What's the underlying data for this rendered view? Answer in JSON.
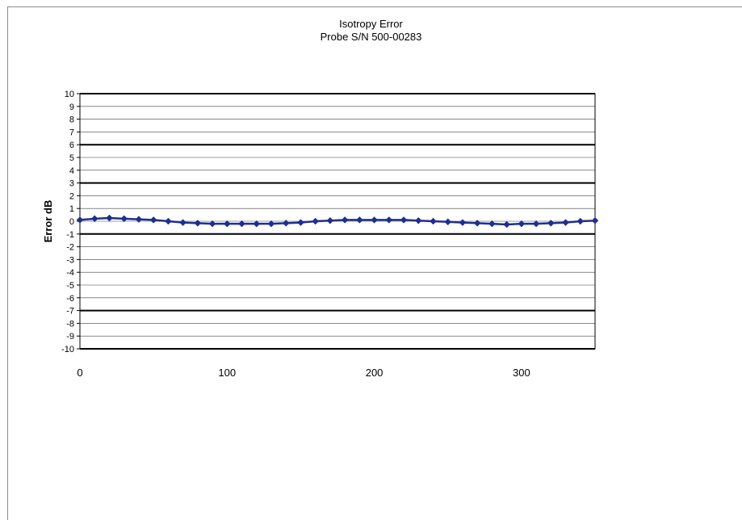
{
  "chart_data": {
    "type": "line",
    "title": "Isotropy Error",
    "subtitle": "Probe S/N 500-00283",
    "xlabel": "",
    "ylabel": "Error dB",
    "xlim": [
      0,
      350
    ],
    "ylim": [
      -10,
      10
    ],
    "x_ticks": [
      0,
      100,
      200,
      300
    ],
    "y_ticks": [
      10,
      9,
      8,
      7,
      6,
      5,
      4,
      3,
      2,
      1,
      0,
      -1,
      -2,
      -3,
      -4,
      -5,
      -6,
      -7,
      -8,
      -9,
      -10
    ],
    "emphasized_gridlines": [
      10,
      6,
      3,
      -1,
      -7,
      -10
    ],
    "grid": true,
    "legend": "none",
    "series": [
      {
        "color": "#1f2f8f",
        "marker": "diamond",
        "x": [
          0,
          10,
          20,
          30,
          40,
          50,
          60,
          70,
          80,
          90,
          100,
          110,
          120,
          130,
          140,
          150,
          160,
          170,
          180,
          190,
          200,
          210,
          220,
          230,
          240,
          250,
          260,
          270,
          280,
          290,
          300,
          310,
          320,
          330,
          340,
          350
        ],
        "y": [
          0.1,
          0.2,
          0.25,
          0.2,
          0.15,
          0.1,
          0.0,
          -0.1,
          -0.15,
          -0.2,
          -0.2,
          -0.2,
          -0.2,
          -0.2,
          -0.15,
          -0.1,
          0.0,
          0.05,
          0.1,
          0.1,
          0.1,
          0.1,
          0.1,
          0.05,
          0.0,
          -0.05,
          -0.1,
          -0.15,
          -0.2,
          -0.25,
          -0.2,
          -0.2,
          -0.15,
          -0.1,
          0.0,
          0.05
        ]
      }
    ]
  }
}
